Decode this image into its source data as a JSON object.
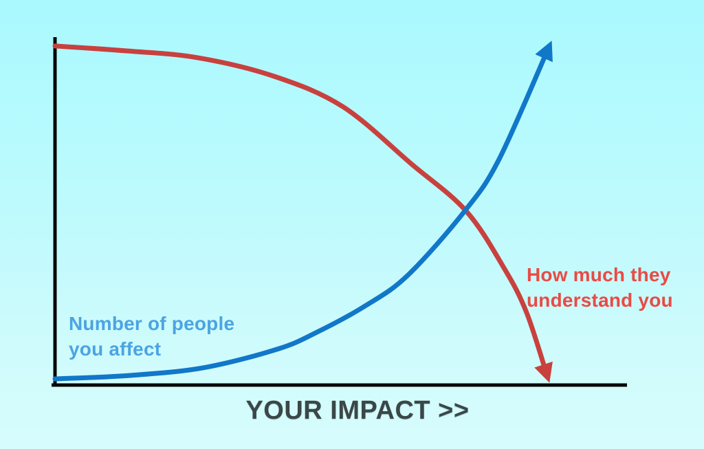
{
  "canvas": {
    "background_top": "#a9f9fe",
    "background_bottom": "#d7fcfd",
    "axis_color": "#070707"
  },
  "labels": {
    "blue_series": "Number of people\nyou affect",
    "red_series": "How much they\nunderstand you",
    "x_axis": "YOUR IMPACT >>"
  },
  "colors": {
    "blue_curve": "#1177c9",
    "blue_label_text": "#4ba4e2",
    "red_curve": "#c8413e",
    "red_label_text": "#ea4a44",
    "x_axis_label_text": "#3b4747"
  },
  "chart_data": {
    "type": "line",
    "title": "",
    "xlabel": "YOUR IMPACT >>",
    "ylabel": "",
    "axis_style": "bare axes, no ticks, no gridlines, arrows on curve ends",
    "x_range": [
      0,
      1
    ],
    "y_range": [
      0,
      1
    ],
    "grid": false,
    "legend_position": "labels placed beside curves",
    "series": [
      {
        "name": "Number of people you affect",
        "color": "#1177c9",
        "label_color": "#4ba4e2",
        "shape": "exponential growth",
        "arrow_end": "up-right",
        "points": [
          [
            0,
            0.002
          ],
          [
            0.15,
            0.012
          ],
          [
            0.3,
            0.035
          ],
          [
            0.45,
            0.09
          ],
          [
            0.53,
            0.14
          ],
          [
            0.63,
            0.22
          ],
          [
            0.715,
            0.31
          ],
          [
            0.83,
            0.5
          ],
          [
            0.9,
            0.655
          ],
          [
            1.0,
            0.985
          ]
        ]
      },
      {
        "name": "How much they understand you",
        "color": "#c8413e",
        "label_color": "#ea4a44",
        "shape": "accelerating decline",
        "arrow_end": "down-right",
        "points": [
          [
            0,
            0.99
          ],
          [
            0.15,
            0.975
          ],
          [
            0.29,
            0.955
          ],
          [
            0.444,
            0.9
          ],
          [
            0.583,
            0.81
          ],
          [
            0.722,
            0.64
          ],
          [
            0.833,
            0.5
          ],
          [
            0.91,
            0.33
          ],
          [
            0.955,
            0.2
          ],
          [
            0.997,
            0.012
          ]
        ]
      }
    ]
  }
}
